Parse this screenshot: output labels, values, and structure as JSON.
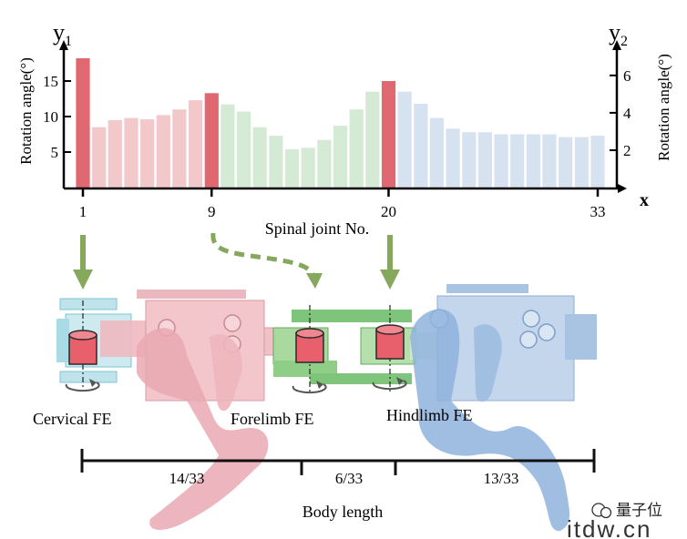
{
  "chart_data": {
    "type": "bar",
    "y1_label": "y",
    "y1_sub": "1",
    "y2_label": "y",
    "y2_sub": "2",
    "x_label": "x",
    "left_axis_title": "Rotation angle(°)",
    "right_axis_title": "Rotation angle(°)",
    "xlabel": "Spinal joint No.",
    "left_ticks": [
      "5",
      "10",
      "15"
    ],
    "right_ticks": [
      "2",
      "4",
      "6"
    ],
    "x_ticks": [
      "1",
      "9",
      "20",
      "33"
    ],
    "ylim": [
      0,
      20
    ],
    "x": [
      1,
      2,
      3,
      4,
      5,
      6,
      7,
      8,
      9,
      10,
      11,
      12,
      13,
      14,
      15,
      16,
      17,
      18,
      19,
      20,
      21,
      22,
      23,
      24,
      25,
      26,
      27,
      28,
      29,
      30,
      31,
      32,
      33
    ],
    "values": [
      18.2,
      8.5,
      9.5,
      9.8,
      9.6,
      10.2,
      11,
      12.3,
      13.3,
      11.7,
      10.7,
      8.5,
      7.3,
      5.4,
      5.6,
      6.7,
      8.7,
      11,
      13.5,
      15,
      13.5,
      11.8,
      9.8,
      8.3,
      7.8,
      7.8,
      7.5,
      7.5,
      7.5,
      7.5,
      7.1,
      7.1,
      7.3
    ],
    "highlight_indices": [
      0,
      8,
      19
    ],
    "colors": {
      "highlight": "#e06870",
      "cervical": "#f3c8ca",
      "thoracic": "#d5ead4",
      "lumbar": "#d7e2f0",
      "axis": "#000000"
    }
  },
  "diagram": {
    "labels": {
      "cervical": "Cervical FE",
      "forelimb": "Forelimb  FE",
      "hindlimb": "Hindlimb  FE"
    },
    "body_length": {
      "label": "Body length",
      "segments": [
        "14/33",
        "6/33",
        "13/33"
      ]
    },
    "colors": {
      "arrow": "#86a85c",
      "cervical_part": "#bfe3ea",
      "forelimb_part": "#e8b8be",
      "green_part": "#7ec47a",
      "hindlimb_part": "#a8c4e2",
      "joint": "#e8606c"
    }
  },
  "watermark": {
    "brand": "量子位",
    "site": "itdw.cn"
  }
}
